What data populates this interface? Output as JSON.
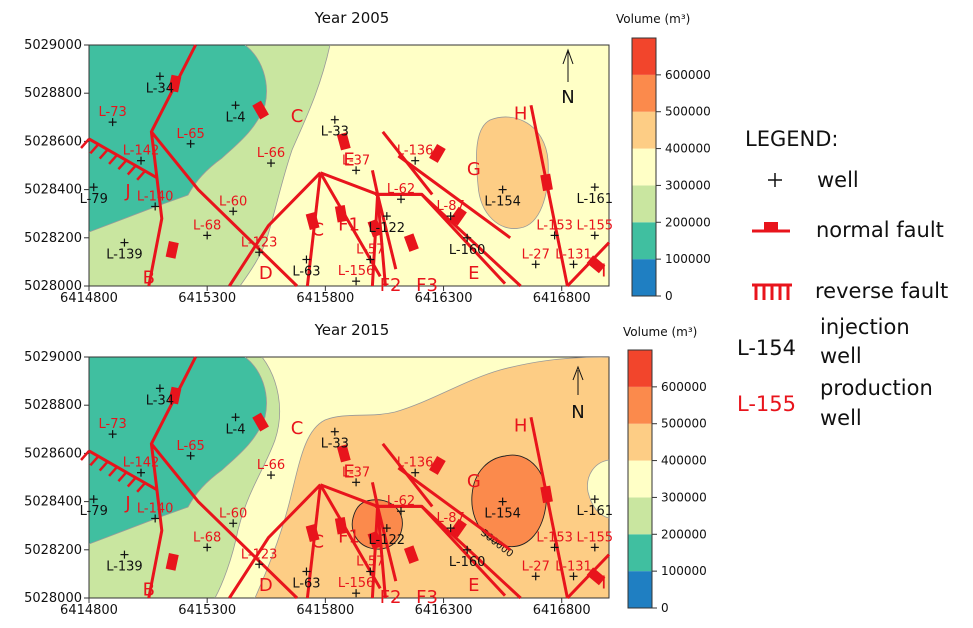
{
  "colors": {
    "c0": "#1f7fc2",
    "c1": "#40bfa0",
    "c2": "#c9e6a0",
    "c3": "#ffffc6",
    "c4": "#fdcd85",
    "c5": "#fb8a4c",
    "c6": "#f2452c",
    "fault": "#e8141c",
    "injection_text": "#111111",
    "production_text": "#e8141c"
  },
  "chart_data": [
    {
      "type": "heatmap",
      "title": "Year 2005",
      "xlim": [
        6414800,
        6417000
      ],
      "ylim": [
        5028000,
        5029000
      ],
      "x_ticks": [
        "6414800",
        "6415300",
        "6415800",
        "6416300",
        "6416800"
      ],
      "y_ticks": [
        "5028000",
        "5028200",
        "5028400",
        "5028600",
        "5028800",
        "5029000"
      ],
      "colorbar": {
        "title": "Volume (m³)",
        "levels": [
          0,
          100000,
          200000,
          300000,
          400000,
          500000,
          600000,
          700000
        ],
        "labels": [
          "0",
          "100000",
          "200000",
          "300000",
          "400000",
          "500000",
          "600000"
        ]
      },
      "contour_labels": []
    },
    {
      "type": "heatmap",
      "title": "Year 2015",
      "xlim": [
        6414800,
        6417000
      ],
      "ylim": [
        5028000,
        5029000
      ],
      "x_ticks": [
        "6414800",
        "6415300",
        "6415800",
        "6416300",
        "6416800"
      ],
      "y_ticks": [
        "5028000",
        "5028200",
        "5028400",
        "5028600",
        "5028800",
        "5029000"
      ],
      "colorbar": {
        "title": "Volume (m³)",
        "levels": [
          0,
          100000,
          200000,
          300000,
          400000,
          500000,
          600000,
          700000
        ],
        "labels": [
          "0",
          "100000",
          "200000",
          "300000",
          "400000",
          "500000",
          "600000"
        ]
      },
      "contour_labels": [
        "500000"
      ]
    }
  ],
  "wells": [
    {
      "name": "L-73",
      "x": 6414900,
      "y": 5028680,
      "type": "production"
    },
    {
      "name": "L-34",
      "x": 6415100,
      "y": 5028870,
      "type": "injection"
    },
    {
      "name": "L-4",
      "x": 6415420,
      "y": 5028750,
      "type": "injection"
    },
    {
      "name": "L-65",
      "x": 6415230,
      "y": 5028590,
      "type": "production"
    },
    {
      "name": "L-142",
      "x": 6415020,
      "y": 5028520,
      "type": "production"
    },
    {
      "name": "L-140",
      "x": 6415080,
      "y": 5028330,
      "type": "production"
    },
    {
      "name": "L-79",
      "x": 6414820,
      "y": 5028410,
      "type": "injection"
    },
    {
      "name": "L-139",
      "x": 6414950,
      "y": 5028180,
      "type": "injection"
    },
    {
      "name": "L-68",
      "x": 6415300,
      "y": 5028210,
      "type": "production"
    },
    {
      "name": "L-60",
      "x": 6415410,
      "y": 5028310,
      "type": "production"
    },
    {
      "name": "L-66",
      "x": 6415570,
      "y": 5028510,
      "type": "production"
    },
    {
      "name": "L-123",
      "x": 6415520,
      "y": 5028140,
      "type": "production"
    },
    {
      "name": "L-63",
      "x": 6415720,
      "y": 5028110,
      "type": "injection"
    },
    {
      "name": "L-33",
      "x": 6415840,
      "y": 5028690,
      "type": "injection"
    },
    {
      "name": "L-37",
      "x": 6415930,
      "y": 5028480,
      "type": "production"
    },
    {
      "name": "L-122",
      "x": 6416060,
      "y": 5028290,
      "type": "injection"
    },
    {
      "name": "L-57",
      "x": 6415990,
      "y": 5028110,
      "type": "production"
    },
    {
      "name": "L-156",
      "x": 6415930,
      "y": 5028020,
      "type": "production"
    },
    {
      "name": "L-62",
      "x": 6416120,
      "y": 5028360,
      "type": "production"
    },
    {
      "name": "L-136",
      "x": 6416180,
      "y": 5028520,
      "type": "production"
    },
    {
      "name": "L-87",
      "x": 6416330,
      "y": 5028290,
      "type": "production"
    },
    {
      "name": "L-160",
      "x": 6416400,
      "y": 5028200,
      "type": "injection"
    },
    {
      "name": "L-154",
      "x": 6416550,
      "y": 5028400,
      "type": "injection"
    },
    {
      "name": "L-27",
      "x": 6416690,
      "y": 5028090,
      "type": "production"
    },
    {
      "name": "L-153",
      "x": 6416770,
      "y": 5028210,
      "type": "production"
    },
    {
      "name": "L-131",
      "x": 6416850,
      "y": 5028090,
      "type": "production"
    },
    {
      "name": "L-161",
      "x": 6416940,
      "y": 5028410,
      "type": "injection"
    },
    {
      "name": "L-155",
      "x": 6416940,
      "y": 5028210,
      "type": "production"
    }
  ],
  "faults": [
    {
      "label": "B",
      "type": "normal"
    },
    {
      "label": "C",
      "type": "normal"
    },
    {
      "label": "D",
      "type": "normal"
    },
    {
      "label": "E",
      "type": "normal"
    },
    {
      "label": "F1",
      "type": "normal"
    },
    {
      "label": "F2",
      "type": "normal"
    },
    {
      "label": "F3",
      "type": "normal"
    },
    {
      "label": "G",
      "type": "normal"
    },
    {
      "label": "H",
      "type": "normal"
    },
    {
      "label": "I",
      "type": "normal"
    },
    {
      "label": "J",
      "type": "reverse"
    }
  ],
  "north_label": "N",
  "legend": {
    "title": "LEGEND:",
    "well": "well",
    "normal_fault": "normal fault",
    "reverse_fault": "reverse fault",
    "injection_sample": "L-154",
    "injection_line1": "injection",
    "injection_line2": "well",
    "production_sample": "L-155",
    "production_line1": "production",
    "production_line2": "well"
  }
}
